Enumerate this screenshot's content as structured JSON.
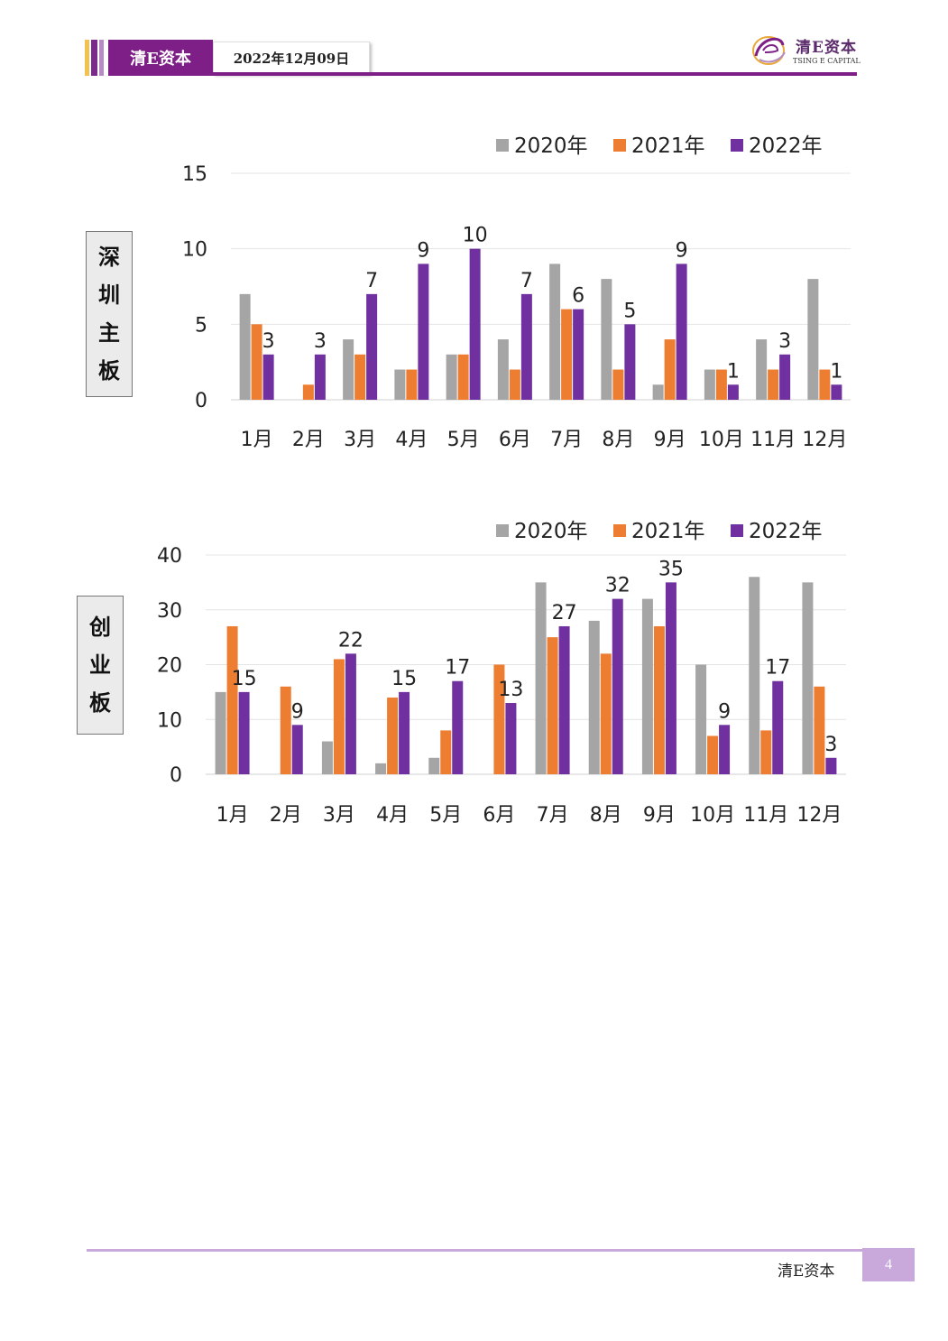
{
  "header": {
    "brand": "清E资本",
    "date": "2022年12月09日",
    "logo_cn": "清E资本",
    "logo_en": "TSING E CAPITAL",
    "logo_icon": "swirl-e-logo-icon",
    "accent_color": "#7d1f86"
  },
  "footer": {
    "brand": "清E资本",
    "page": "4"
  },
  "colors": {
    "2020年": "#a5a5a5",
    "2021年": "#ed7d31",
    "2022年": "#7030a0"
  },
  "chart_data": [
    {
      "type": "bar",
      "side_label": [
        "深",
        "圳",
        "主",
        "板"
      ],
      "categories": [
        "1月",
        "2月",
        "3月",
        "4月",
        "5月",
        "6月",
        "7月",
        "8月",
        "9月",
        "10月",
        "11月",
        "12月"
      ],
      "series": [
        {
          "name": "2020年",
          "values": [
            7,
            0,
            4,
            2,
            3,
            4,
            9,
            8,
            1,
            2,
            4,
            8
          ]
        },
        {
          "name": "2021年",
          "values": [
            5,
            1,
            3,
            2,
            3,
            2,
            6,
            2,
            4,
            2,
            2,
            2
          ]
        },
        {
          "name": "2022年",
          "values": [
            3,
            3,
            7,
            9,
            10,
            7,
            6,
            5,
            9,
            1,
            3,
            1
          ]
        }
      ],
      "data_labels_series": "2022年",
      "ylim": [
        0,
        15
      ],
      "yticks": [
        "0",
        "5",
        "10",
        "15"
      ],
      "grid": true,
      "legend": "top-right",
      "xlabel": "",
      "ylabel": ""
    },
    {
      "type": "bar",
      "side_label": [
        "创",
        "业",
        "板"
      ],
      "categories": [
        "1月",
        "2月",
        "3月",
        "4月",
        "5月",
        "6月",
        "7月",
        "8月",
        "9月",
        "10月",
        "11月",
        "12月"
      ],
      "series": [
        {
          "name": "2020年",
          "values": [
            15,
            0,
            6,
            2,
            3,
            0,
            35,
            28,
            32,
            20,
            36,
            35
          ]
        },
        {
          "name": "2021年",
          "values": [
            27,
            16,
            21,
            14,
            8,
            20,
            25,
            22,
            27,
            7,
            8,
            16
          ]
        },
        {
          "name": "2022年",
          "values": [
            15,
            9,
            22,
            15,
            17,
            13,
            27,
            32,
            35,
            9,
            17,
            3
          ]
        }
      ],
      "data_labels_series": "2022年",
      "ylim": [
        0,
        40
      ],
      "yticks": [
        "0",
        "10",
        "20",
        "30",
        "40"
      ],
      "grid": true,
      "legend": "top-right",
      "xlabel": "",
      "ylabel": ""
    }
  ]
}
